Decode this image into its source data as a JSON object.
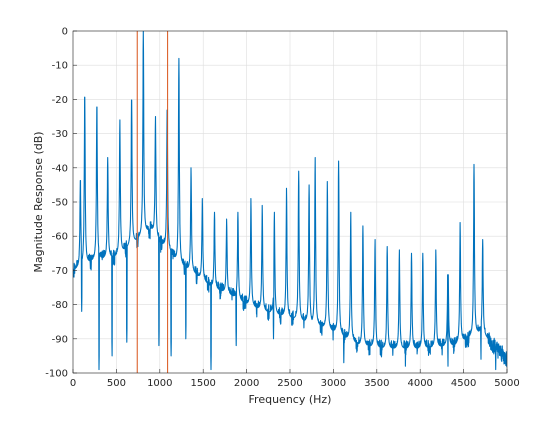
{
  "chart_data": {
    "type": "line",
    "title": "",
    "xlabel": "Frequency (Hz)",
    "ylabel": "Magnitude Response (dB)",
    "xlim": [
      0,
      5000
    ],
    "ylim": [
      -100,
      0
    ],
    "xticks": [
      0,
      500,
      1000,
      1500,
      2000,
      2500,
      3000,
      3500,
      4000,
      4500,
      5000
    ],
    "yticks": [
      0,
      -10,
      -20,
      -30,
      -40,
      -50,
      -60,
      -70,
      -80,
      -90,
      -100
    ],
    "grid": true,
    "legend": "none",
    "series_color": "#0072BD",
    "marker_color": "#D95319",
    "markers": [
      740,
      1090
    ],
    "baseline_points": [
      [
        0,
        -70
      ],
      [
        250,
        -67
      ],
      [
        500,
        -66
      ],
      [
        700,
        -62
      ],
      [
        800,
        -60
      ],
      [
        900,
        -58
      ],
      [
        1000,
        -62
      ],
      [
        1100,
        -64
      ],
      [
        1200,
        -68
      ],
      [
        1400,
        -71
      ],
      [
        1600,
        -75
      ],
      [
        1800,
        -77
      ],
      [
        2000,
        -80
      ],
      [
        2200,
        -82
      ],
      [
        2500,
        -84
      ],
      [
        2800,
        -86
      ],
      [
        3000,
        -88
      ],
      [
        3300,
        -92
      ],
      [
        3600,
        -93
      ],
      [
        4000,
        -93
      ],
      [
        4400,
        -92
      ],
      [
        4700,
        -88
      ],
      [
        4850,
        -92
      ],
      [
        5000,
        -96
      ]
    ],
    "peaks": [
      {
        "f": 85,
        "db": -43
      },
      {
        "f": 135,
        "db": -18
      },
      {
        "f": 275,
        "db": -21
      },
      {
        "f": 400,
        "db": -37
      },
      {
        "f": 540,
        "db": -26
      },
      {
        "f": 675,
        "db": -19
      },
      {
        "f": 810,
        "db": 0
      },
      {
        "f": 950,
        "db": -25
      },
      {
        "f": 1085,
        "db": -22
      },
      {
        "f": 1220,
        "db": -8
      },
      {
        "f": 1360,
        "db": -40
      },
      {
        "f": 1490,
        "db": -49
      },
      {
        "f": 1630,
        "db": -53
      },
      {
        "f": 1770,
        "db": -55
      },
      {
        "f": 1900,
        "db": -53
      },
      {
        "f": 2050,
        "db": -49
      },
      {
        "f": 2180,
        "db": -51
      },
      {
        "f": 2320,
        "db": -53
      },
      {
        "f": 2460,
        "db": -46
      },
      {
        "f": 2600,
        "db": -41
      },
      {
        "f": 2720,
        "db": -45
      },
      {
        "f": 2790,
        "db": -37
      },
      {
        "f": 2930,
        "db": -44
      },
      {
        "f": 3060,
        "db": -38
      },
      {
        "f": 3200,
        "db": -53
      },
      {
        "f": 3340,
        "db": -57
      },
      {
        "f": 3480,
        "db": -61
      },
      {
        "f": 3620,
        "db": -63
      },
      {
        "f": 3760,
        "db": -64
      },
      {
        "f": 3900,
        "db": -65
      },
      {
        "f": 4030,
        "db": -65
      },
      {
        "f": 4180,
        "db": -64
      },
      {
        "f": 4320,
        "db": -62
      },
      {
        "f": 4460,
        "db": -56
      },
      {
        "f": 4620,
        "db": -39
      },
      {
        "f": 4720,
        "db": -61
      }
    ],
    "notches": [
      {
        "f": 100,
        "db": -82
      },
      {
        "f": 300,
        "db": -99
      },
      {
        "f": 450,
        "db": -95
      },
      {
        "f": 620,
        "db": -91
      },
      {
        "f": 990,
        "db": -92
      },
      {
        "f": 1130,
        "db": -95
      },
      {
        "f": 1300,
        "db": -90
      },
      {
        "f": 1590,
        "db": -99
      },
      {
        "f": 1880,
        "db": -92
      },
      {
        "f": 2310,
        "db": -90
      },
      {
        "f": 3120,
        "db": -97
      },
      {
        "f": 3830,
        "db": -98
      },
      {
        "f": 4320,
        "db": -98
      },
      {
        "f": 4700,
        "db": -96
      },
      {
        "f": 4870,
        "db": -99
      }
    ]
  }
}
